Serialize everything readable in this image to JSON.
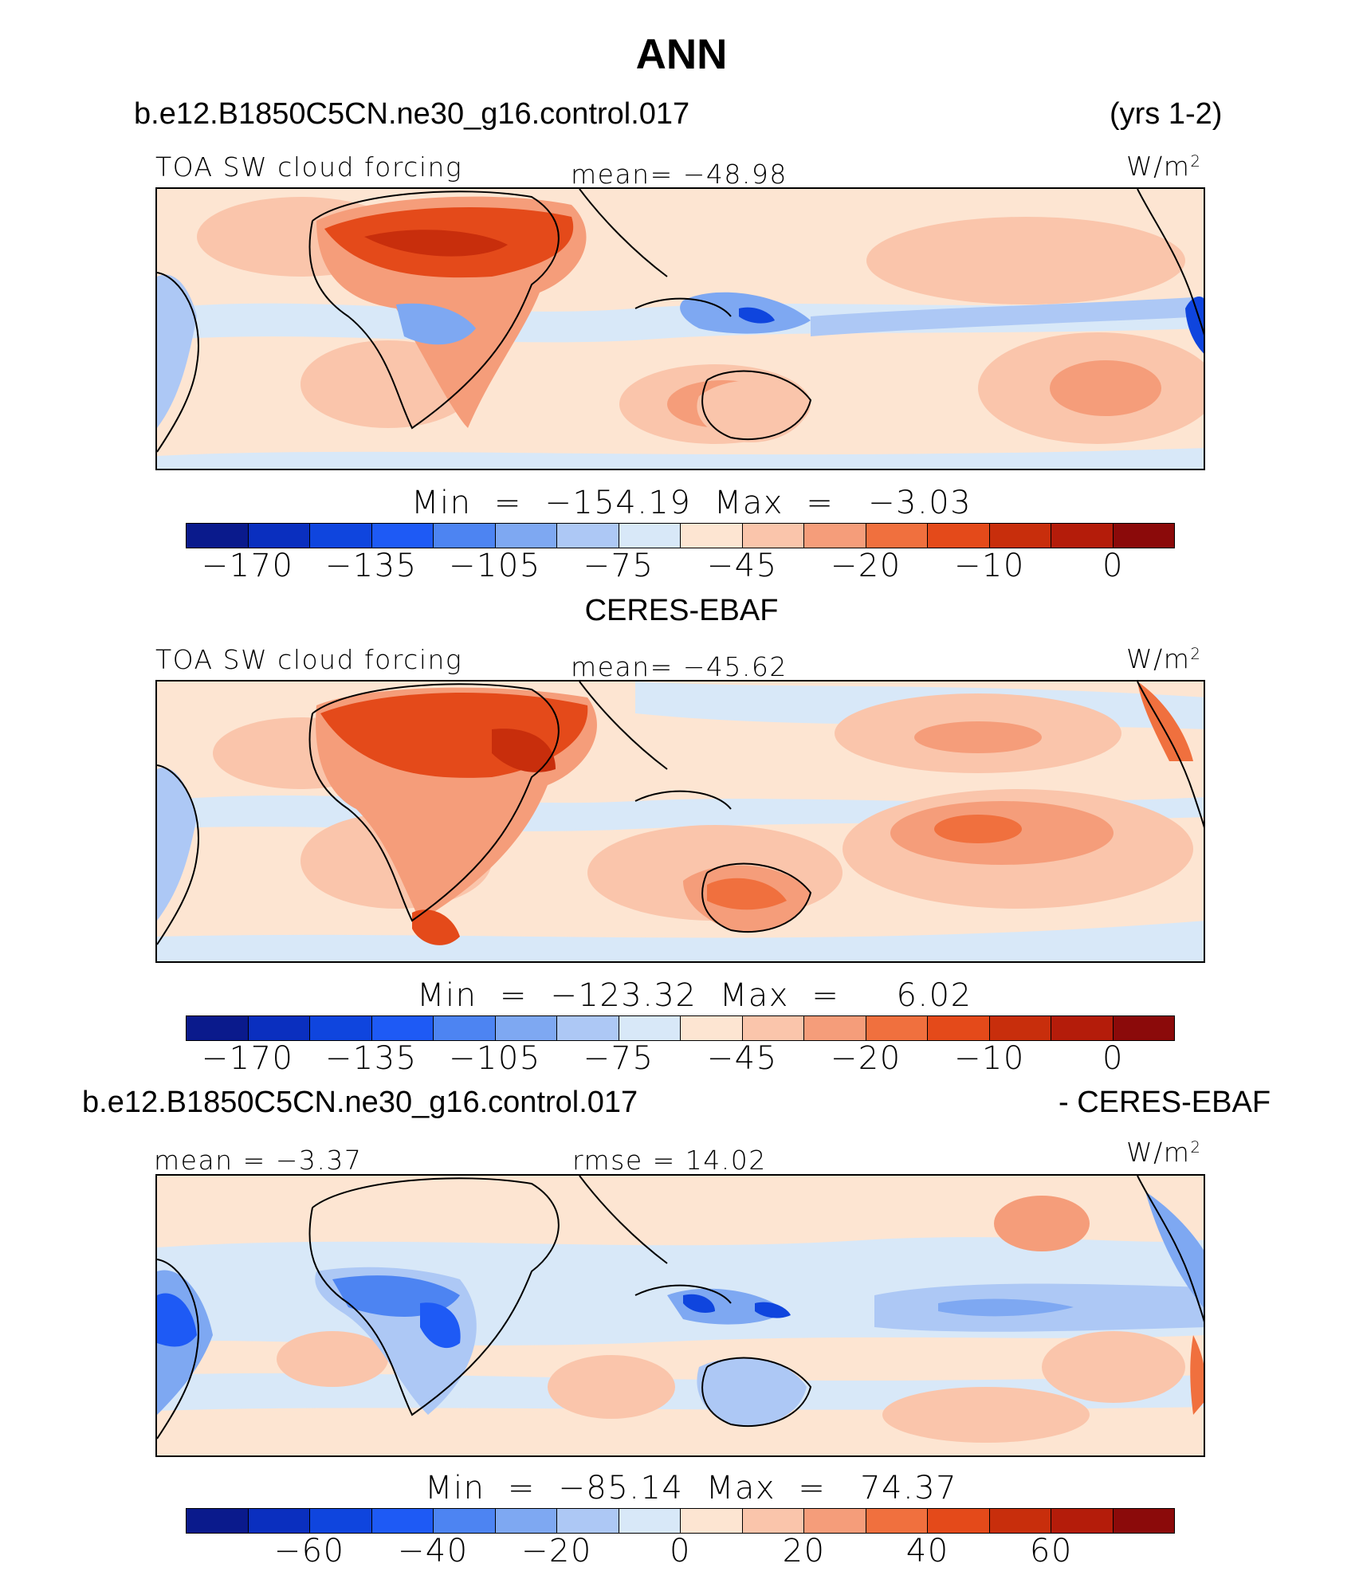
{
  "title": "ANN",
  "case_name": "b.e12.B1850C5CN.ne30_g16.control.017",
  "years": "(yrs 1-2)",
  "obs_name": "CERES-EBAF",
  "diff_label": "- CERES-EBAF",
  "units": "W/m",
  "units_exp": "2",
  "panels": [
    {
      "id": "model",
      "left_label": "TOA SW cloud forcing",
      "center_label": "mean=  −48.98",
      "minmax_text": "Min  =  −154.19  Max  =   −3.03",
      "colorbar_ticks": [
        "−170",
        "−135",
        "−105",
        "−75",
        "−45",
        "−20",
        "−10",
        "0"
      ],
      "colorbar_tick_positions": [
        1,
        3,
        5,
        7,
        9,
        11,
        13,
        15
      ]
    },
    {
      "id": "obs",
      "left_label": "TOA SW cloud forcing",
      "center_label": "mean=  −45.62",
      "minmax_text": "Min  =  −123.32  Max  =     6.02",
      "colorbar_ticks": [
        "−170",
        "−135",
        "−105",
        "−75",
        "−45",
        "−20",
        "−10",
        "0"
      ],
      "colorbar_tick_positions": [
        1,
        3,
        5,
        7,
        9,
        11,
        13,
        15
      ]
    },
    {
      "id": "diff",
      "left_label": "mean =   −3.37",
      "center_label": "rmse =   14.02",
      "minmax_text": "Min  =  −85.14  Max  =   74.37",
      "colorbar_ticks": [
        "−60",
        "−40",
        "−20",
        "0",
        "20",
        "40",
        "60"
      ],
      "colorbar_tick_positions": [
        2,
        4,
        6,
        8,
        10,
        12,
        14
      ]
    }
  ],
  "colors": {
    "colorbar": [
      "#0a1a8c",
      "#0a2fbf",
      "#0f45de",
      "#1e5af5",
      "#4d84f2",
      "#7ea8f2",
      "#adc8f5",
      "#d8e8f8",
      "#fde5d2",
      "#fac5ab",
      "#f59d7a",
      "#f0703e",
      "#e44a1a",
      "#c82e0c",
      "#b41c0a",
      "#8b0a0a"
    ],
    "ocean_model": "#fde5d2",
    "ocean_obs": "#fde5d2",
    "ocean_diff": "#fde5d2"
  }
}
